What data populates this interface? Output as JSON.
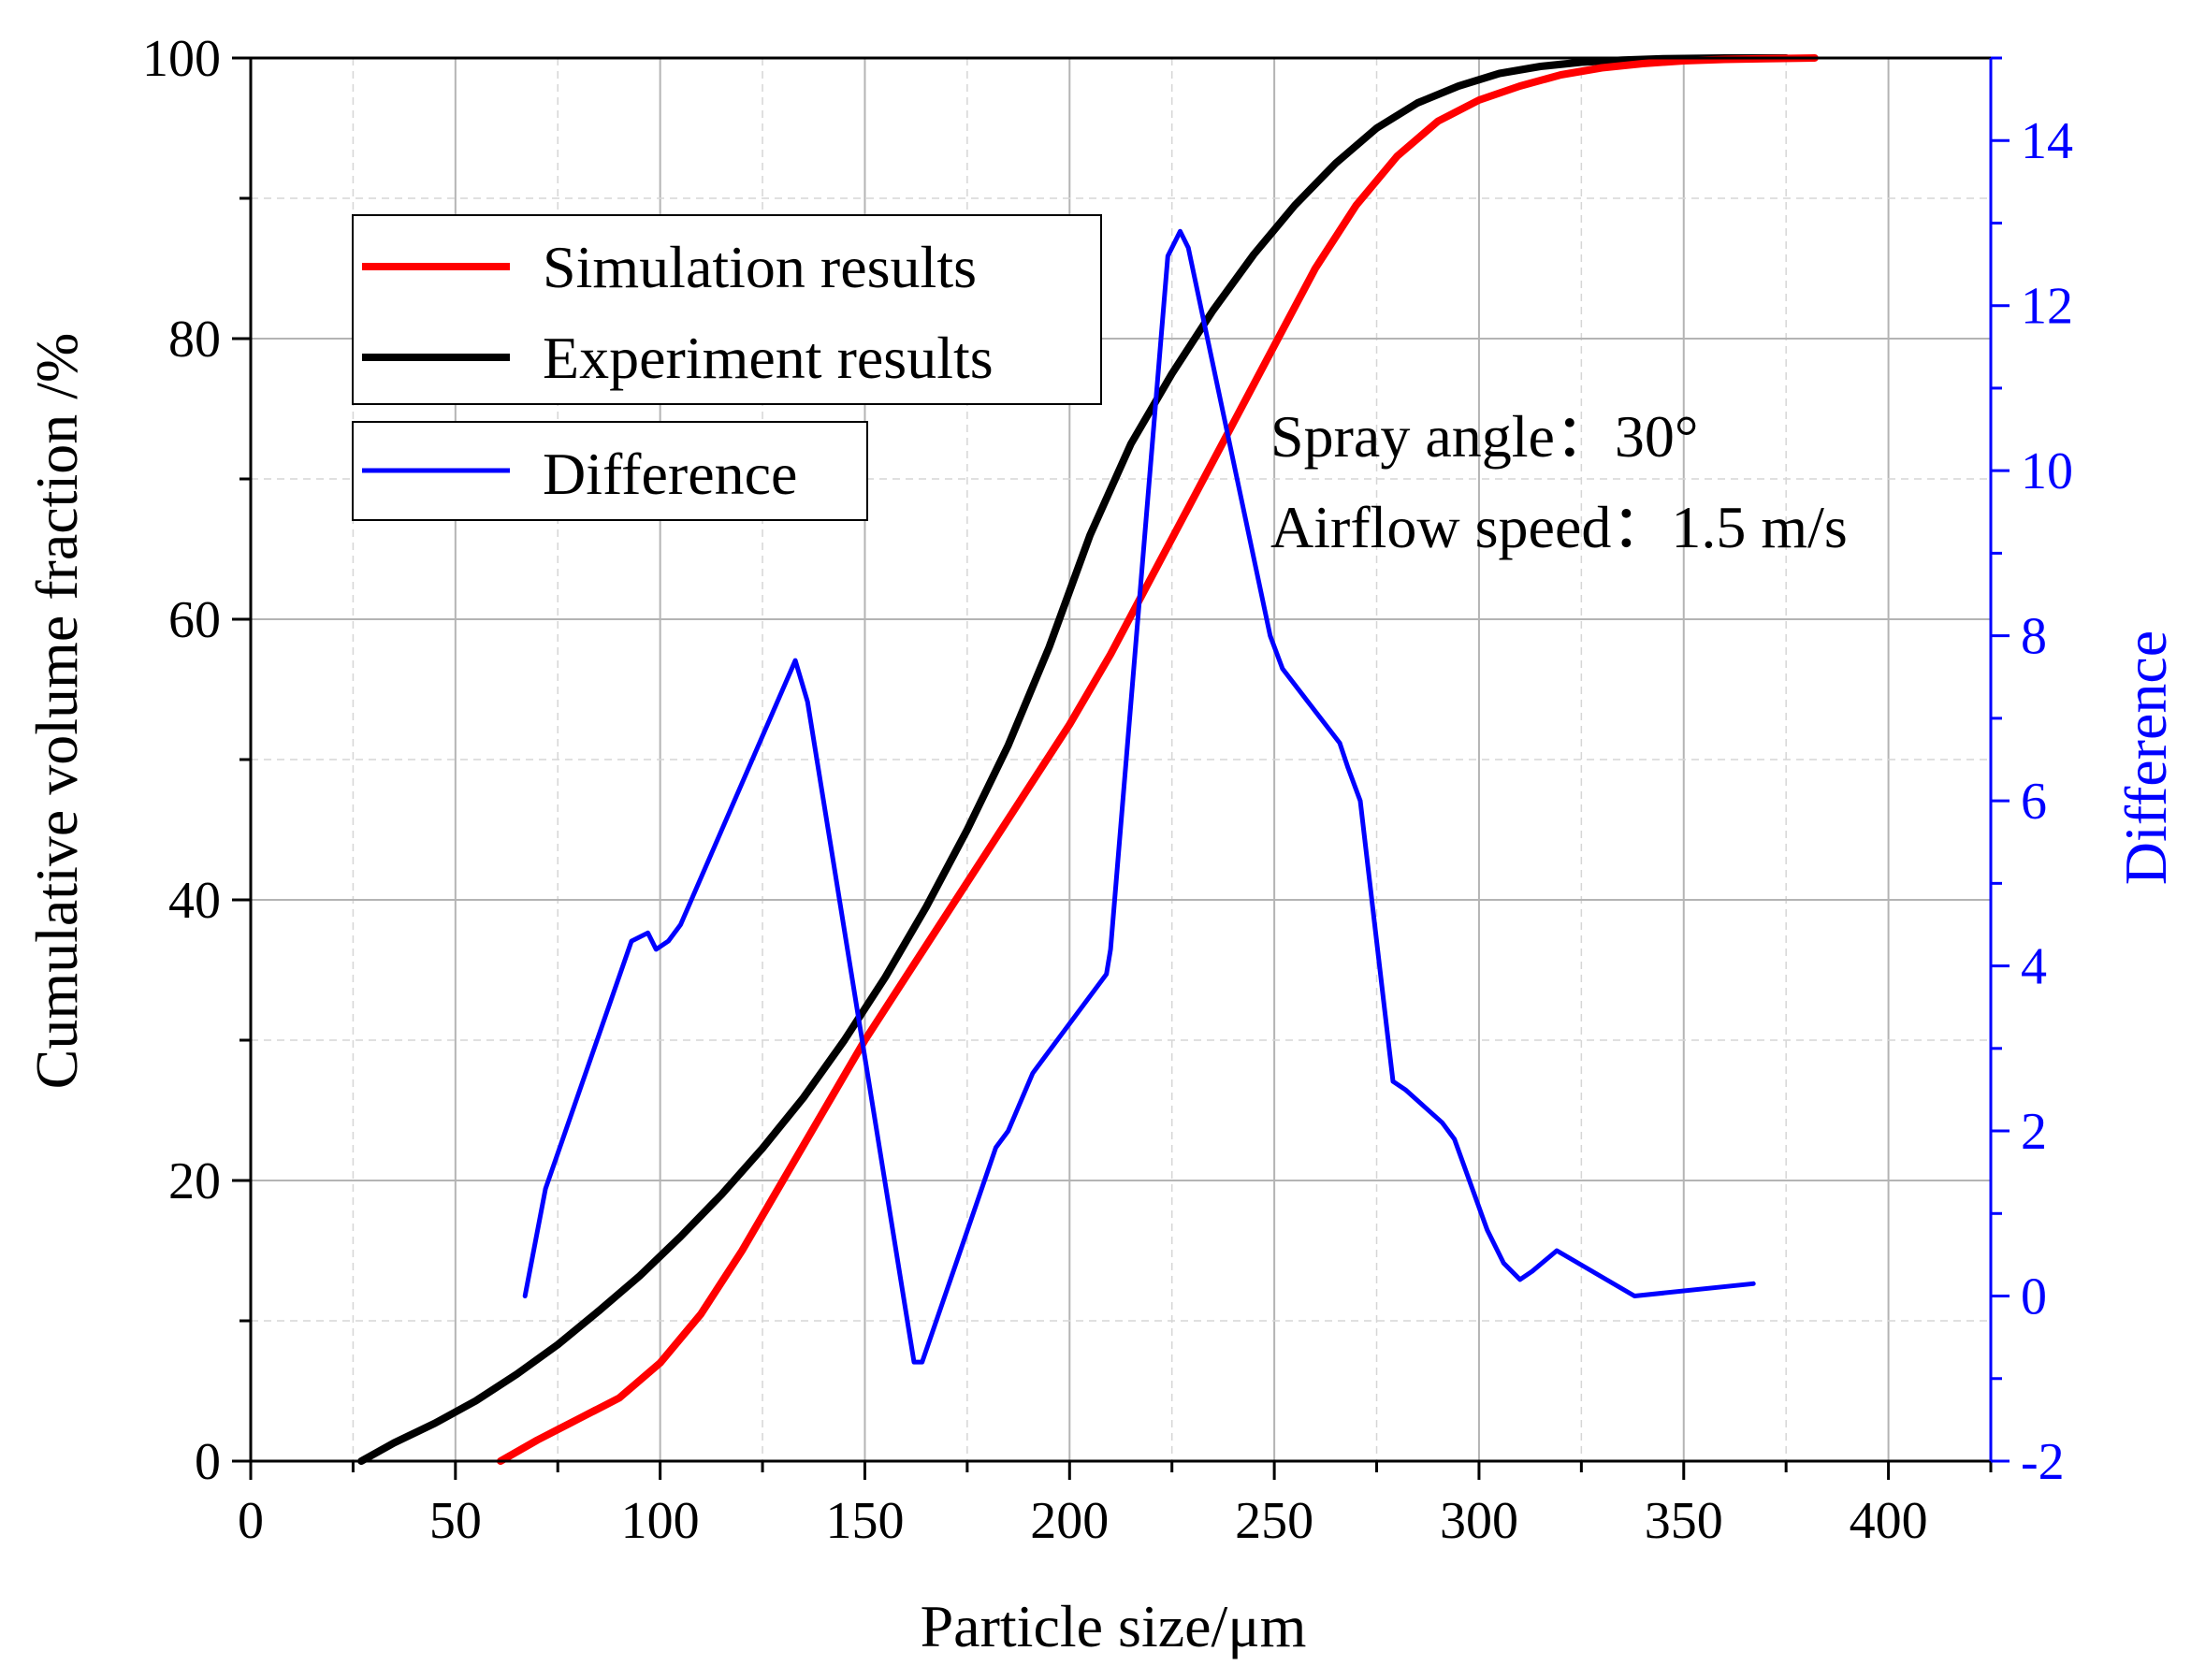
{
  "chart_data": {
    "type": "line",
    "xlabel": "Particle size/μm",
    "ylabel": "Cumulative volume fraction /%",
    "ylabel_right": "Difference",
    "xlim": [
      0,
      425
    ],
    "ylim": [
      0,
      100
    ],
    "ylim_right": [
      -2,
      15
    ],
    "x_ticks": [
      0,
      50,
      100,
      150,
      200,
      250,
      300,
      350,
      400
    ],
    "y_ticks": [
      0,
      20,
      40,
      60,
      80,
      100
    ],
    "y_ticks_right": [
      -2,
      0,
      2,
      4,
      6,
      8,
      10,
      12,
      14
    ],
    "grid": true,
    "legend": [
      {
        "label": "Simulation results",
        "color": "#ff0000"
      },
      {
        "label": "Experiment results",
        "color": "#000000"
      },
      {
        "label": "Difference",
        "color": "#0000ff"
      }
    ],
    "annotations": [
      "Spray angle：30°",
      "Airflow speed：1.5 m/s"
    ],
    "series": [
      {
        "name": "Simulation results",
        "color": "#ff0000",
        "axis": "left",
        "x": [
          61,
          70,
          80,
          90,
          100,
          110,
          120,
          130,
          140,
          150,
          160,
          170,
          180,
          190,
          200,
          210,
          220,
          230,
          240,
          250,
          260,
          270,
          280,
          290,
          300,
          310,
          320,
          330,
          340,
          350,
          360,
          370,
          382
        ],
        "y": [
          0,
          1.5,
          3,
          4.5,
          7,
          10.5,
          15,
          20,
          25,
          30,
          34.5,
          39,
          43.5,
          48,
          52.5,
          57.5,
          63,
          68.5,
          74,
          79.5,
          85,
          89.5,
          93,
          95.5,
          97,
          98,
          98.8,
          99.3,
          99.6,
          99.8,
          99.9,
          99.95,
          100
        ]
      },
      {
        "name": "Experiment results",
        "color": "#000000",
        "axis": "left",
        "x": [
          27,
          35,
          45,
          55,
          65,
          75,
          85,
          95,
          105,
          115,
          125,
          135,
          145,
          155,
          165,
          175,
          185,
          195,
          205,
          215,
          225,
          235,
          245,
          255,
          265,
          275,
          285,
          295,
          305,
          315,
          325,
          335,
          345,
          360,
          375
        ],
        "y": [
          0,
          1.3,
          2.7,
          4.3,
          6.2,
          8.3,
          10.7,
          13.2,
          16,
          19,
          22.3,
          25.9,
          30,
          34.5,
          39.5,
          45,
          51,
          58,
          66,
          72.5,
          77.5,
          82,
          86,
          89.5,
          92.5,
          95,
          96.8,
          98,
          98.9,
          99.4,
          99.7,
          99.85,
          99.95,
          100,
          100
        ]
      },
      {
        "name": "Difference",
        "color": "#0000ff",
        "axis": "right",
        "x": [
          67,
          72,
          93,
          97,
          99,
          102,
          105,
          133,
          136,
          162,
          164,
          182,
          185,
          191,
          194,
          209,
          210,
          224,
          227,
          229,
          249,
          252,
          266,
          268,
          271,
          279,
          282,
          291,
          294,
          302,
          306,
          310,
          313,
          319,
          338,
          367
        ],
        "y": [
          0,
          1.3,
          4.3,
          4.4,
          4.2,
          4.3,
          4.5,
          7.7,
          7.2,
          -0.8,
          -0.8,
          1.8,
          2.0,
          2.7,
          2.9,
          3.9,
          4.2,
          12.6,
          12.9,
          12.7,
          8.0,
          7.6,
          6.7,
          6.4,
          6.0,
          2.6,
          2.5,
          2.1,
          1.9,
          0.8,
          0.4,
          0.2,
          0.3,
          0.55,
          0.0,
          0.15
        ]
      }
    ]
  }
}
